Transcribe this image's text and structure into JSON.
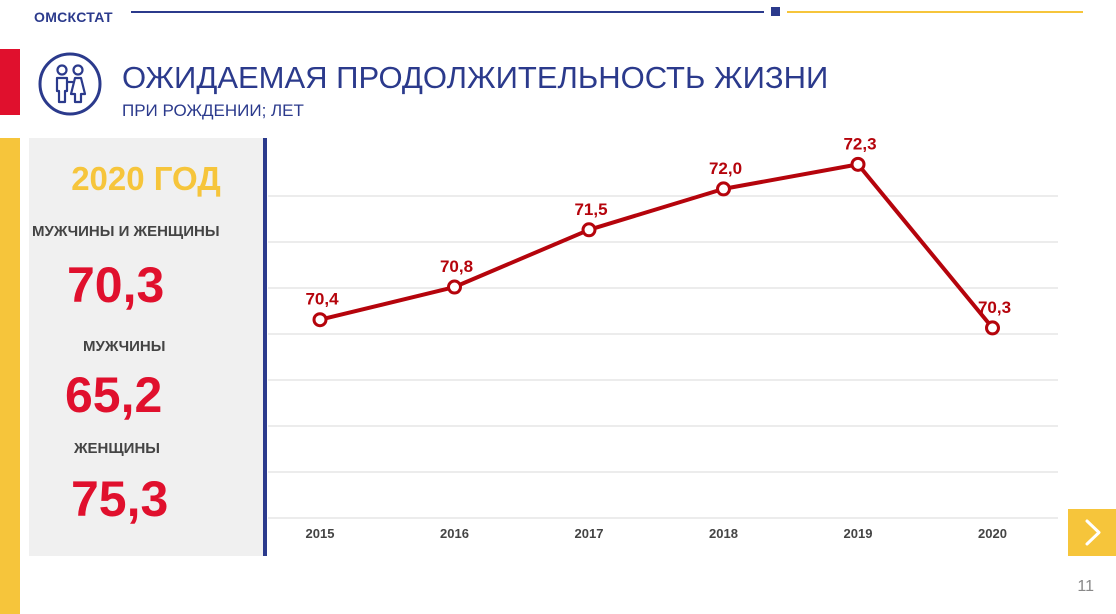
{
  "header": {
    "brand": "ОМСКСТАТ"
  },
  "title": {
    "main": "ОЖИДАЕМАЯ ПРОДОЛЖИТЕЛЬНОСТЬ ЖИЗНИ",
    "sub": "ПРИ РОЖДЕНИИ; ЛЕТ"
  },
  "icon": "family-icon",
  "summary": {
    "year": "2020 ГОД",
    "items": [
      {
        "label": "МУЖЧИНЫ И ЖЕНЩИНЫ",
        "value": "70,3"
      },
      {
        "label": "МУЖЧИНЫ",
        "value": "65,2"
      },
      {
        "label": "ЖЕНЩИНЫ",
        "value": "75,3"
      }
    ]
  },
  "colors": {
    "brand_blue": "#2b3a8c",
    "accent_red": "#e0102d",
    "line_red": "#b5040c",
    "accent_yellow": "#f6c53b"
  },
  "chart_data": {
    "type": "line",
    "categories": [
      "2015",
      "2016",
      "2017",
      "2018",
      "2019",
      "2020"
    ],
    "values": [
      70.4,
      70.8,
      71.5,
      72.0,
      72.3,
      70.3
    ],
    "value_labels": [
      "70,4",
      "70,8",
      "71,5",
      "72,0",
      "72,3",
      "70,3"
    ],
    "ylim": [
      68.0,
      72.5
    ],
    "grid": true,
    "legend": "none"
  },
  "nav": {
    "next_icon": "chevron-right-icon"
  },
  "page_number": "11"
}
